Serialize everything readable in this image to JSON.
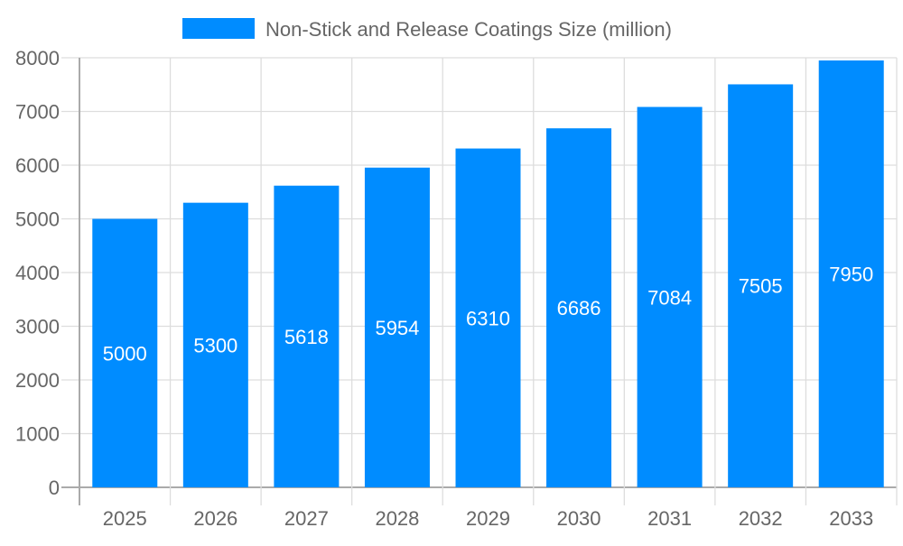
{
  "chart_data": {
    "type": "bar",
    "categories": [
      "2025",
      "2026",
      "2027",
      "2028",
      "2029",
      "2030",
      "2031",
      "2032",
      "2033"
    ],
    "series": [
      {
        "name": "Non-Stick and Release Coatings Size (million)",
        "values": [
          5000,
          5300,
          5618,
          5954,
          6310,
          6686,
          7084,
          7505,
          7950
        ],
        "color": "#008cff"
      }
    ],
    "ylim": [
      0,
      8000
    ],
    "yticks": [
      0,
      1000,
      2000,
      3000,
      4000,
      5000,
      6000,
      7000,
      8000
    ],
    "grid": true,
    "legend": "top",
    "data_labels": true
  }
}
